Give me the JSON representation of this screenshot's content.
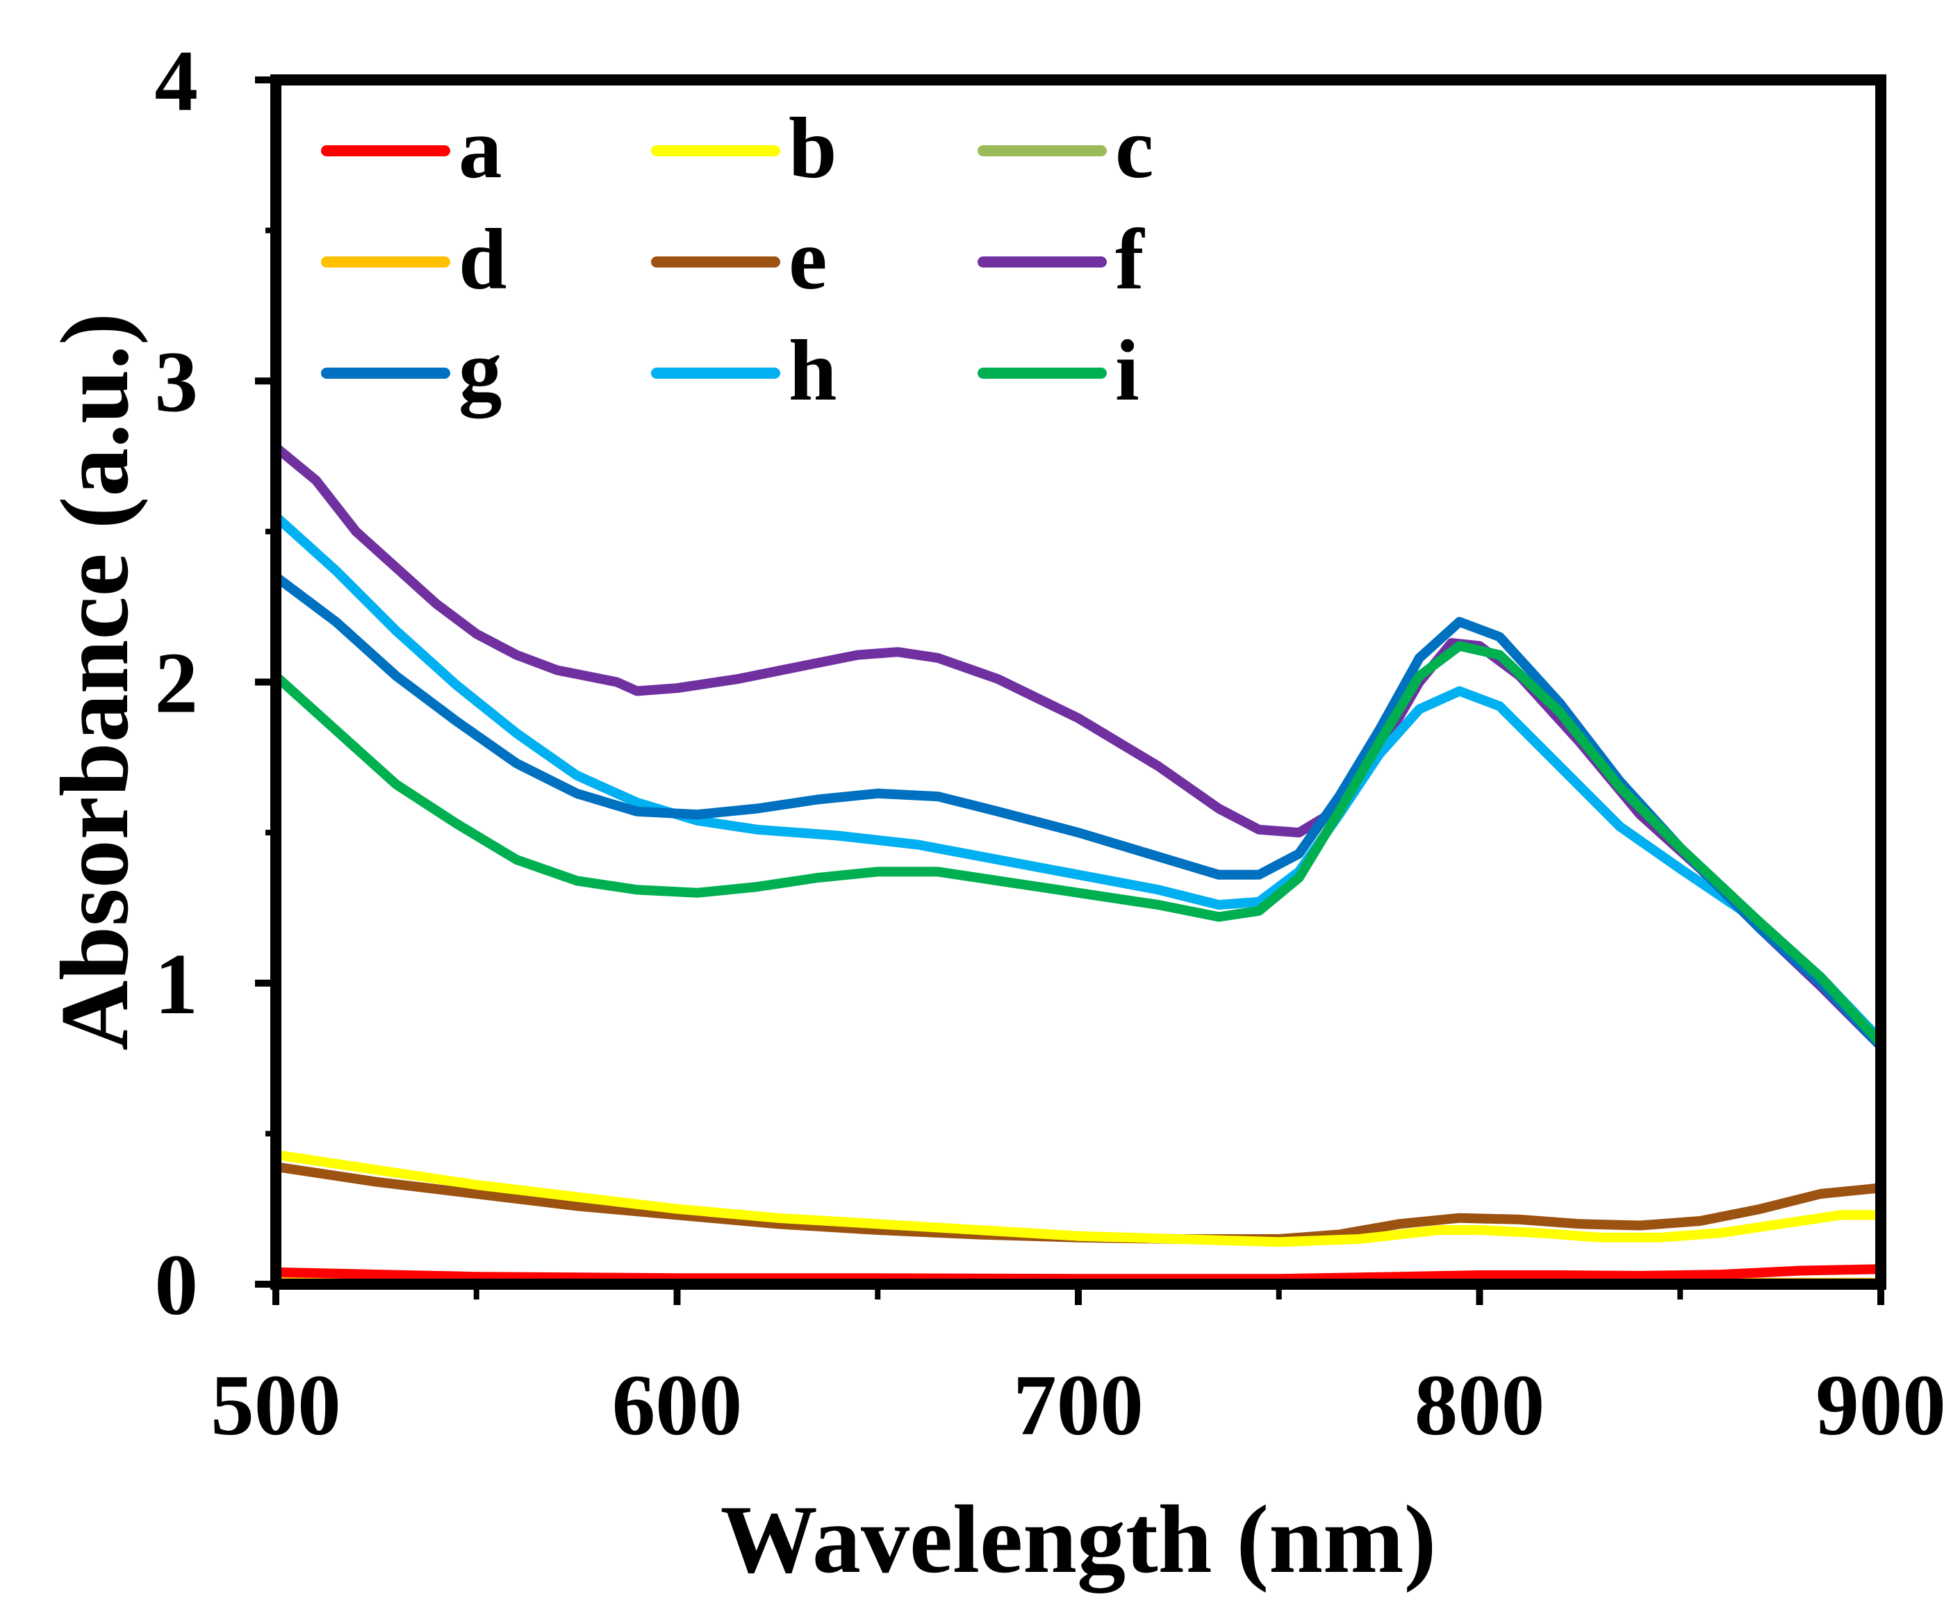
{
  "chart_data": {
    "type": "line",
    "title": "",
    "xlabel": "Wavelength (nm)",
    "ylabel": "Absorbance (a.u.)",
    "xlim": [
      500,
      900
    ],
    "ylim": [
      0,
      4
    ],
    "x_ticks": [
      500,
      600,
      700,
      800,
      900
    ],
    "y_ticks": [
      0,
      1,
      2,
      3,
      4
    ],
    "x_tick_labels": [
      "500",
      "600",
      "700",
      "800",
      "900"
    ],
    "y_tick_labels": [
      "0",
      "1",
      "2",
      "3",
      "4"
    ],
    "grid": false,
    "legend_position": "top-left",
    "series": [
      {
        "name": "a",
        "color": "#FF0000",
        "points": [
          [
            500,
            0.04
          ],
          [
            550,
            0.025
          ],
          [
            600,
            0.02
          ],
          [
            650,
            0.02
          ],
          [
            700,
            0.018
          ],
          [
            750,
            0.018
          ],
          [
            780,
            0.025
          ],
          [
            800,
            0.03
          ],
          [
            820,
            0.03
          ],
          [
            840,
            0.028
          ],
          [
            860,
            0.032
          ],
          [
            880,
            0.045
          ],
          [
            900,
            0.05
          ]
        ]
      },
      {
        "name": "b",
        "color": "#FFFF00",
        "points": [
          [
            500,
            0.43
          ],
          [
            525,
            0.38
          ],
          [
            550,
            0.33
          ],
          [
            575,
            0.29
          ],
          [
            600,
            0.25
          ],
          [
            625,
            0.22
          ],
          [
            650,
            0.2
          ],
          [
            675,
            0.18
          ],
          [
            700,
            0.16
          ],
          [
            725,
            0.15
          ],
          [
            750,
            0.14
          ],
          [
            770,
            0.15
          ],
          [
            790,
            0.18
          ],
          [
            800,
            0.18
          ],
          [
            815,
            0.17
          ],
          [
            830,
            0.155
          ],
          [
            845,
            0.155
          ],
          [
            860,
            0.17
          ],
          [
            875,
            0.2
          ],
          [
            890,
            0.23
          ],
          [
            900,
            0.23
          ]
        ]
      },
      {
        "name": "c",
        "color": "#9BBB59",
        "points": [
          [
            500,
            0.02
          ],
          [
            550,
            0.01
          ],
          [
            600,
            0.005
          ],
          [
            700,
            0.003
          ],
          [
            800,
            0.003
          ],
          [
            900,
            0.003
          ]
        ]
      },
      {
        "name": "d",
        "color": "#FFC000",
        "points": [
          [
            500,
            0.02
          ],
          [
            550,
            0.012
          ],
          [
            600,
            0.008
          ],
          [
            700,
            0.006
          ],
          [
            800,
            0.005
          ],
          [
            900,
            0.005
          ]
        ]
      },
      {
        "name": "e",
        "color": "#9C5210",
        "points": [
          [
            500,
            0.39
          ],
          [
            525,
            0.34
          ],
          [
            550,
            0.3
          ],
          [
            575,
            0.26
          ],
          [
            600,
            0.23
          ],
          [
            625,
            0.2
          ],
          [
            650,
            0.18
          ],
          [
            675,
            0.165
          ],
          [
            700,
            0.155
          ],
          [
            725,
            0.15
          ],
          [
            750,
            0.15
          ],
          [
            765,
            0.165
          ],
          [
            780,
            0.2
          ],
          [
            795,
            0.22
          ],
          [
            810,
            0.215
          ],
          [
            825,
            0.2
          ],
          [
            840,
            0.195
          ],
          [
            855,
            0.21
          ],
          [
            870,
            0.25
          ],
          [
            885,
            0.3
          ],
          [
            900,
            0.32
          ]
        ]
      },
      {
        "name": "f",
        "color": "#7030A0",
        "points": [
          [
            500,
            2.78
          ],
          [
            510,
            2.67
          ],
          [
            520,
            2.5
          ],
          [
            530,
            2.38
          ],
          [
            540,
            2.26
          ],
          [
            550,
            2.16
          ],
          [
            560,
            2.09
          ],
          [
            570,
            2.04
          ],
          [
            585,
            2.0
          ],
          [
            590,
            1.97
          ],
          [
            600,
            1.98
          ],
          [
            615,
            2.01
          ],
          [
            630,
            2.05
          ],
          [
            645,
            2.09
          ],
          [
            655,
            2.1
          ],
          [
            665,
            2.08
          ],
          [
            680,
            2.01
          ],
          [
            700,
            1.88
          ],
          [
            720,
            1.72
          ],
          [
            735,
            1.58
          ],
          [
            745,
            1.51
          ],
          [
            755,
            1.5
          ],
          [
            765,
            1.58
          ],
          [
            775,
            1.77
          ],
          [
            785,
            2.0
          ],
          [
            793,
            2.13
          ],
          [
            800,
            2.12
          ],
          [
            810,
            2.02
          ],
          [
            825,
            1.8
          ],
          [
            840,
            1.56
          ],
          [
            855,
            1.38
          ],
          [
            870,
            1.18
          ],
          [
            885,
            0.99
          ],
          [
            900,
            0.79
          ]
        ]
      },
      {
        "name": "g",
        "color": "#0070C0",
        "points": [
          [
            500,
            2.35
          ],
          [
            515,
            2.2
          ],
          [
            530,
            2.02
          ],
          [
            545,
            1.87
          ],
          [
            560,
            1.73
          ],
          [
            575,
            1.63
          ],
          [
            590,
            1.57
          ],
          [
            605,
            1.56
          ],
          [
            620,
            1.58
          ],
          [
            635,
            1.61
          ],
          [
            650,
            1.63
          ],
          [
            665,
            1.62
          ],
          [
            680,
            1.57
          ],
          [
            700,
            1.5
          ],
          [
            720,
            1.42
          ],
          [
            735,
            1.36
          ],
          [
            745,
            1.36
          ],
          [
            755,
            1.43
          ],
          [
            765,
            1.62
          ],
          [
            775,
            1.84
          ],
          [
            785,
            2.08
          ],
          [
            795,
            2.2
          ],
          [
            805,
            2.15
          ],
          [
            820,
            1.93
          ],
          [
            835,
            1.67
          ],
          [
            850,
            1.45
          ],
          [
            870,
            1.18
          ],
          [
            885,
            1.0
          ],
          [
            900,
            0.79
          ]
        ]
      },
      {
        "name": "h",
        "color": "#00B0F0",
        "points": [
          [
            500,
            2.55
          ],
          [
            515,
            2.37
          ],
          [
            530,
            2.17
          ],
          [
            545,
            1.99
          ],
          [
            560,
            1.83
          ],
          [
            575,
            1.69
          ],
          [
            590,
            1.6
          ],
          [
            605,
            1.54
          ],
          [
            620,
            1.51
          ],
          [
            640,
            1.49
          ],
          [
            660,
            1.46
          ],
          [
            680,
            1.41
          ],
          [
            700,
            1.36
          ],
          [
            720,
            1.31
          ],
          [
            735,
            1.26
          ],
          [
            745,
            1.27
          ],
          [
            755,
            1.37
          ],
          [
            765,
            1.56
          ],
          [
            775,
            1.76
          ],
          [
            785,
            1.91
          ],
          [
            795,
            1.97
          ],
          [
            805,
            1.92
          ],
          [
            820,
            1.72
          ],
          [
            835,
            1.52
          ],
          [
            850,
            1.38
          ],
          [
            870,
            1.2
          ],
          [
            885,
            1.02
          ],
          [
            900,
            0.81
          ]
        ]
      },
      {
        "name": "i",
        "color": "#00B050",
        "points": [
          [
            500,
            2.02
          ],
          [
            515,
            1.84
          ],
          [
            530,
            1.66
          ],
          [
            545,
            1.53
          ],
          [
            560,
            1.41
          ],
          [
            575,
            1.34
          ],
          [
            590,
            1.31
          ],
          [
            605,
            1.3
          ],
          [
            620,
            1.32
          ],
          [
            635,
            1.35
          ],
          [
            650,
            1.37
          ],
          [
            665,
            1.37
          ],
          [
            680,
            1.34
          ],
          [
            700,
            1.3
          ],
          [
            720,
            1.26
          ],
          [
            735,
            1.22
          ],
          [
            745,
            1.24
          ],
          [
            755,
            1.35
          ],
          [
            765,
            1.57
          ],
          [
            775,
            1.8
          ],
          [
            785,
            2.02
          ],
          [
            795,
            2.12
          ],
          [
            805,
            2.09
          ],
          [
            820,
            1.9
          ],
          [
            835,
            1.65
          ],
          [
            850,
            1.45
          ],
          [
            870,
            1.2
          ],
          [
            885,
            1.02
          ],
          [
            900,
            0.8
          ]
        ]
      }
    ]
  }
}
